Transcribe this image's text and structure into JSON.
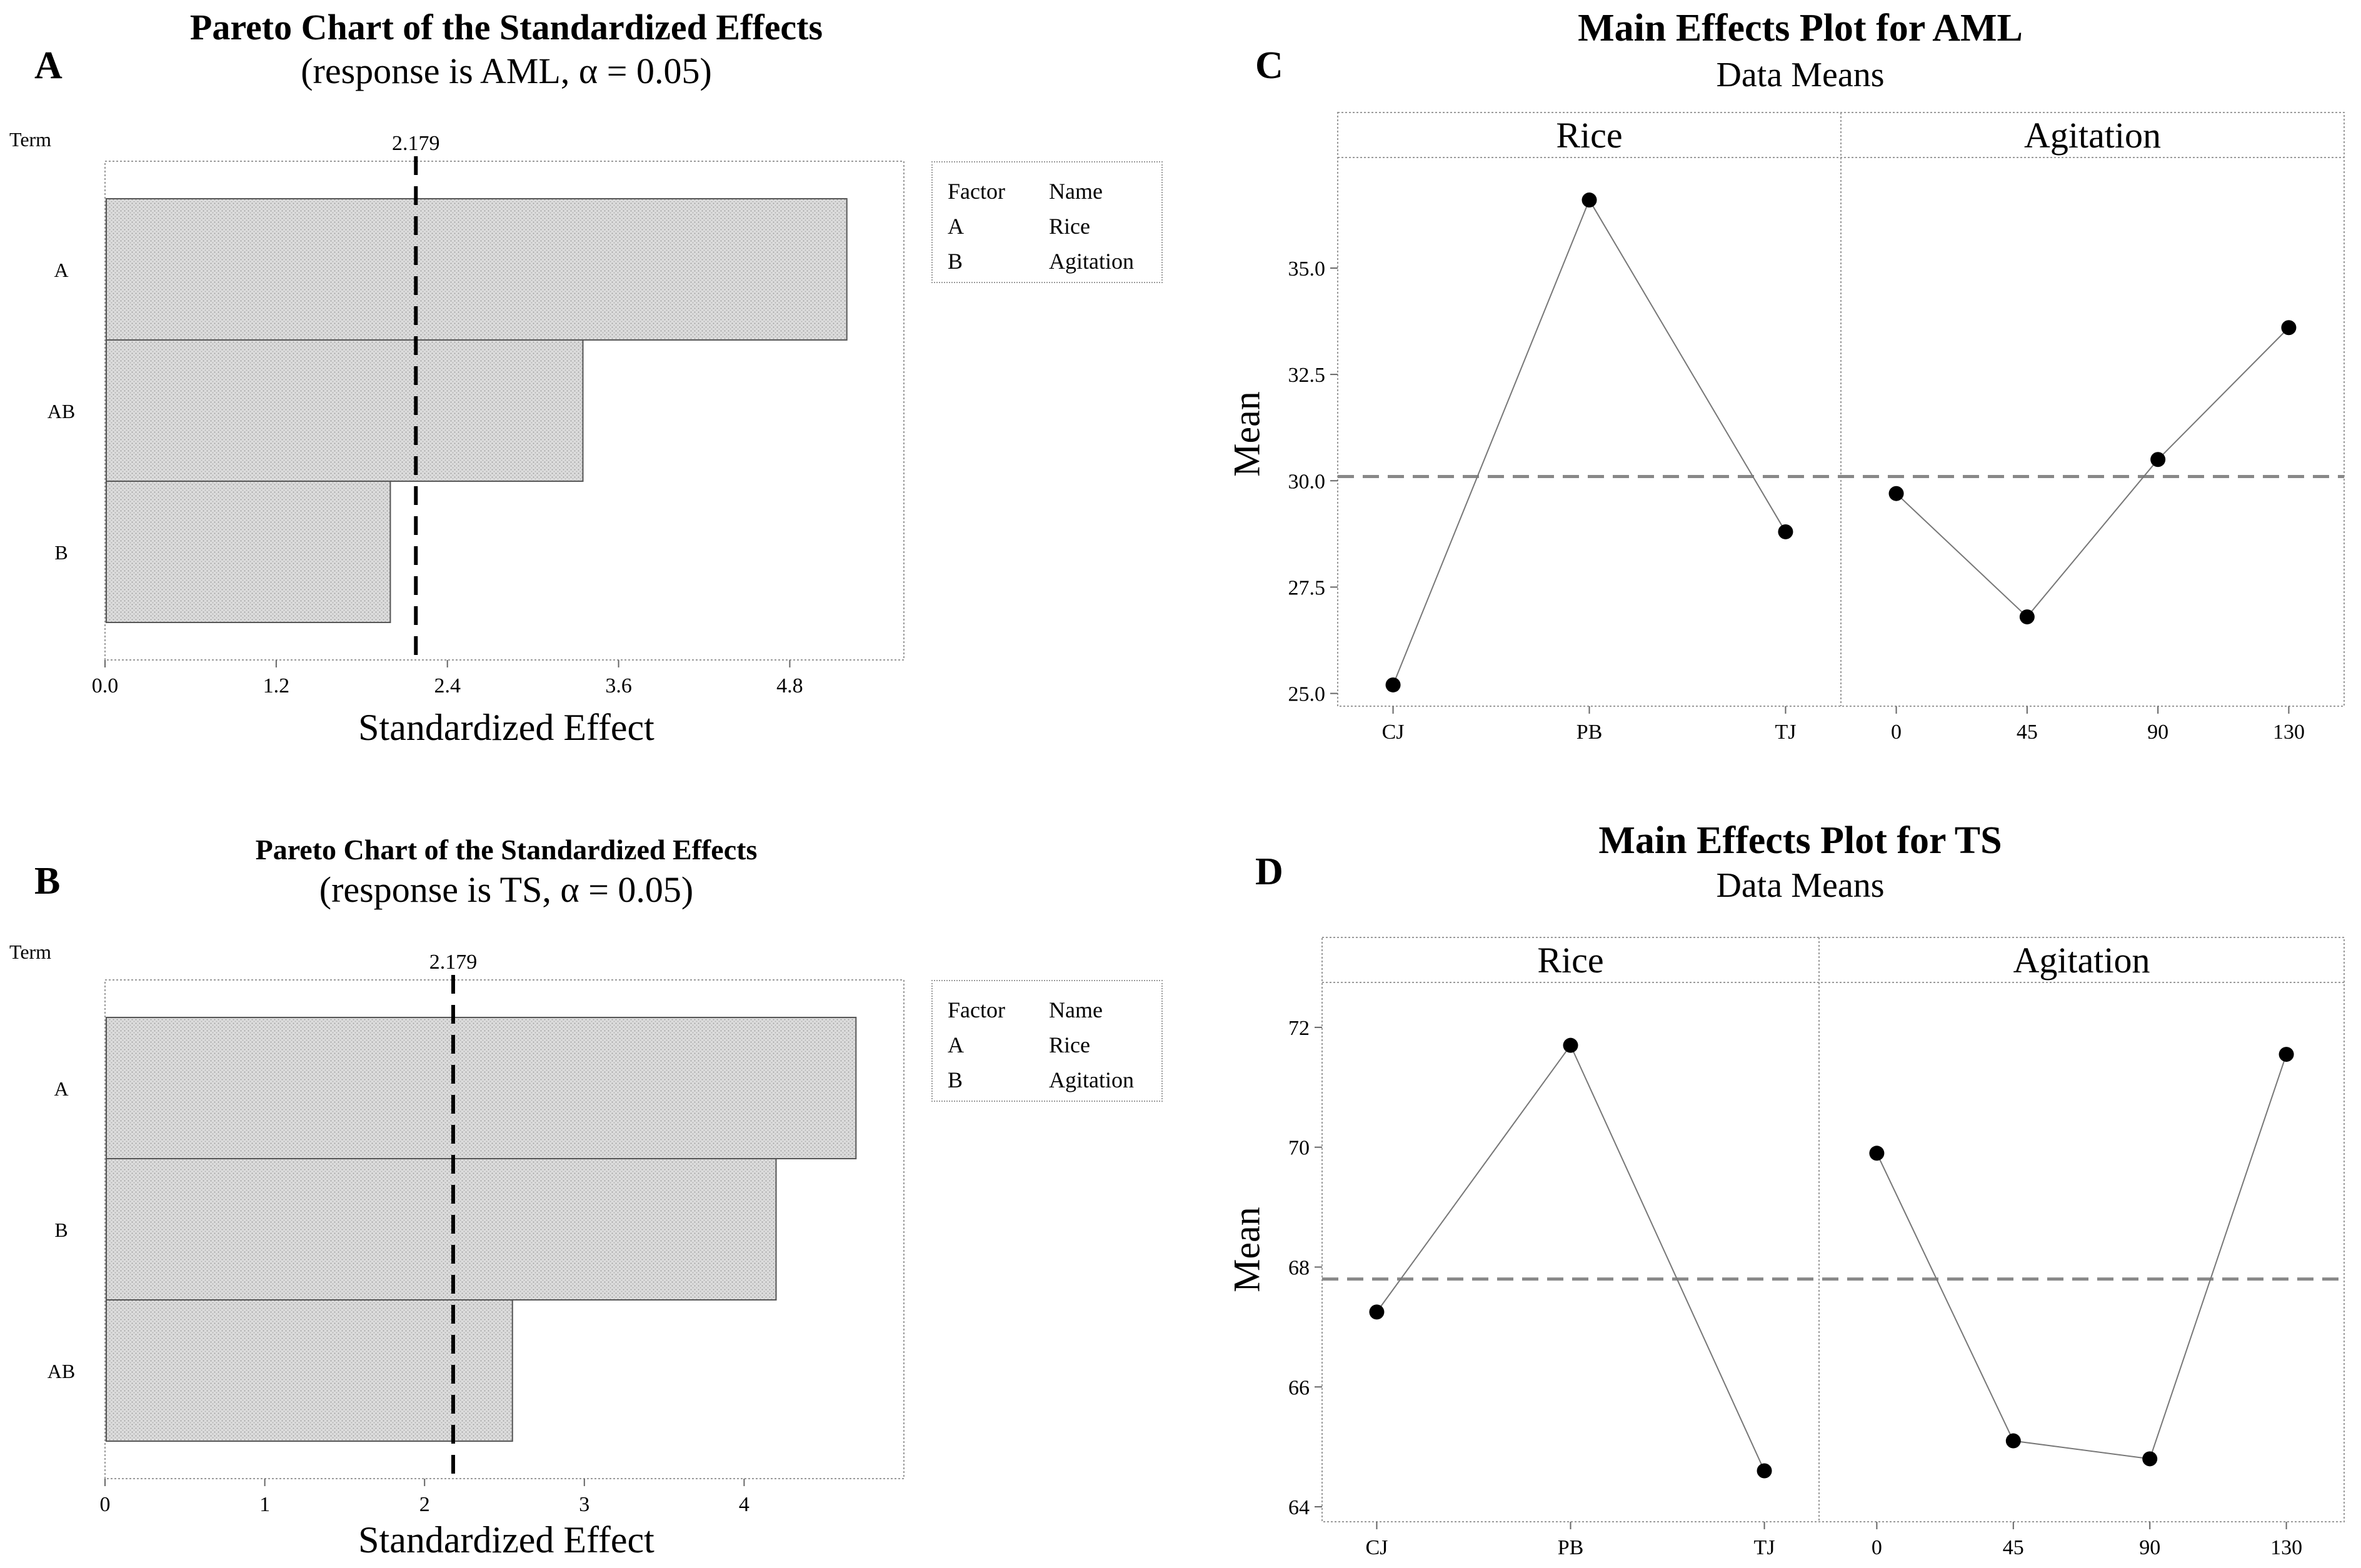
{
  "panel_labels": {
    "a": "A",
    "b": "B",
    "c": "C",
    "d": "D"
  },
  "chart_data": [
    {
      "id": "A",
      "type": "bar",
      "orientation": "horizontal",
      "title": "Pareto Chart of the Standardized Effects",
      "subtitle": "(response is AML, α = 0.05)",
      "ylabel": "Term",
      "xlabel": "Standardized Effect",
      "categories": [
        "A",
        "AB",
        "B"
      ],
      "values": [
        5.2,
        3.35,
        2.0
      ],
      "xlim": [
        0,
        5.6
      ],
      "xticks": [
        "0.0",
        "1.2",
        "2.4",
        "3.6",
        "4.8"
      ],
      "xtick_values": [
        0,
        1.2,
        2.4,
        3.6,
        4.8
      ],
      "reference_line": 2.179,
      "reference_label": "2.179",
      "legend": {
        "header": [
          "Factor",
          "Name"
        ],
        "rows": [
          [
            "A",
            "Rice"
          ],
          [
            "B",
            "Agitation"
          ]
        ]
      }
    },
    {
      "id": "B",
      "type": "bar",
      "orientation": "horizontal",
      "title": "Pareto Chart of the Standardized Effects",
      "subtitle": "(response is TS, α = 0.05)",
      "ylabel": "Term",
      "xlabel": "Standardized Effect",
      "categories": [
        "A",
        "B",
        "AB"
      ],
      "values": [
        4.7,
        4.2,
        2.55
      ],
      "xlim": [
        0,
        5.0
      ],
      "xticks": [
        "0",
        "1",
        "2",
        "3",
        "4"
      ],
      "xtick_values": [
        0,
        1,
        2,
        3,
        4
      ],
      "reference_line": 2.179,
      "reference_label": "2.179",
      "legend": {
        "header": [
          "Factor",
          "Name"
        ],
        "rows": [
          [
            "A",
            "Rice"
          ],
          [
            "B",
            "Agitation"
          ]
        ]
      }
    },
    {
      "id": "C",
      "type": "line",
      "title": "Main Effects Plot for AML",
      "subtitle": "Data Means",
      "ylabel": "Mean",
      "ylim": [
        24.7,
        37.6
      ],
      "yticks": [
        "25.0",
        "27.5",
        "30.0",
        "32.5",
        "35.0"
      ],
      "ytick_values": [
        25.0,
        27.5,
        30.0,
        32.5,
        35.0
      ],
      "mean_line": 30.1,
      "panels": [
        {
          "name": "Rice",
          "categories": [
            "CJ",
            "PB",
            "TJ"
          ],
          "values": [
            25.2,
            36.6,
            28.8
          ]
        },
        {
          "name": "Agitation",
          "categories": [
            "0",
            "45",
            "90",
            "130"
          ],
          "values": [
            29.7,
            26.8,
            30.5,
            33.6
          ]
        }
      ]
    },
    {
      "id": "D",
      "type": "line",
      "title": "Main Effects Plot for TS",
      "subtitle": "Data Means",
      "ylabel": "Mean",
      "ylim": [
        63.75,
        72.75
      ],
      "yticks": [
        "64",
        "66",
        "68",
        "70",
        "72"
      ],
      "ytick_values": [
        64,
        66,
        68,
        70,
        72
      ],
      "mean_line": 67.8,
      "panels": [
        {
          "name": "Rice",
          "categories": [
            "CJ",
            "PB",
            "TJ"
          ],
          "values": [
            67.25,
            71.7,
            64.6
          ]
        },
        {
          "name": "Agitation",
          "categories": [
            "0",
            "45",
            "90",
            "130"
          ],
          "values": [
            69.9,
            65.1,
            64.8,
            71.55
          ]
        }
      ]
    }
  ]
}
